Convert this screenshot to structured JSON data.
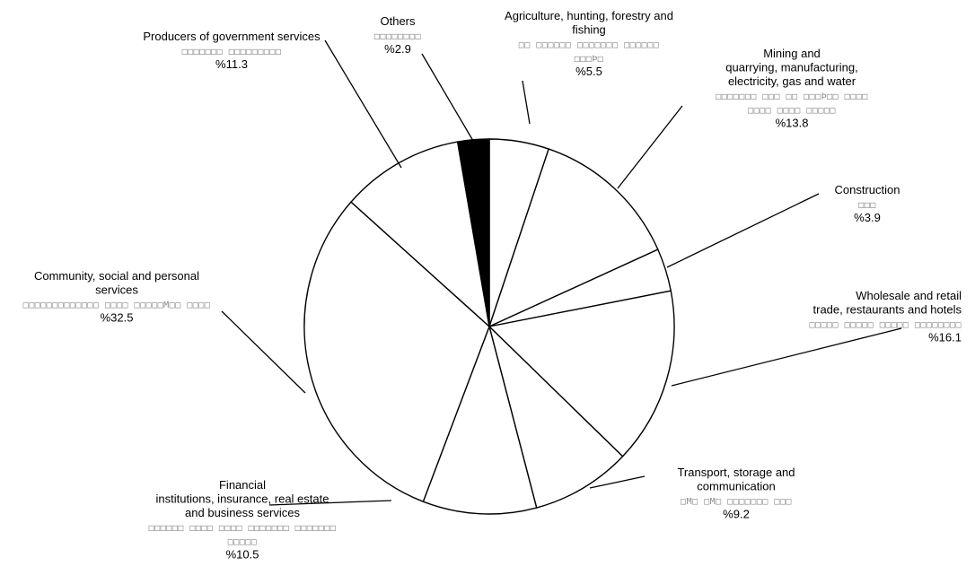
{
  "chart_data": {
    "type": "pie",
    "slices": [
      {
        "label": [
          "Agriculture, hunting, forestry and",
          "fishing"
        ],
        "garbled": [
          "□□ □□□□□□ □□□□□□□ □□□□□□",
          "□□□Þ□"
        ],
        "value": 5.5,
        "value_label": "%5.5",
        "color": "#ffffff"
      },
      {
        "label": [
          "Mining and",
          "quarrying, manufacturing,",
          "electricity, gas and water"
        ],
        "garbled": [
          "□□□□□□□ □□□ □□ □□□Þ□□ □□□□",
          "□□□□ □□□□ □□□□□"
        ],
        "value": 13.8,
        "value_label": "%13.8",
        "color": "#ffffff"
      },
      {
        "label": [
          "Construction"
        ],
        "garbled": [
          "□□□"
        ],
        "value": 3.9,
        "value_label": "%3.9",
        "color": "#ffffff"
      },
      {
        "label": [
          "Wholesale and retail",
          "trade, restaurants and hotels"
        ],
        "garbled": [
          "□□□□□ □□□□□ □□□□□ □□□□□□□□"
        ],
        "value": 16.1,
        "value_label": "%16.1",
        "color": "#ffffff"
      },
      {
        "label": [
          "Transport, storage and",
          "communication"
        ],
        "garbled": [
          "□M□ □M□ □□□□□□□ □□□"
        ],
        "value": 9.2,
        "value_label": "%9.2",
        "color": "#ffffff"
      },
      {
        "label": [
          "Financial",
          "institutions, insurance, real estate",
          "and business services"
        ],
        "garbled": [
          "□□□□□□ □□□□ □□□□ □□□□□□□ □□□□□□□",
          "□□□□□"
        ],
        "value": 10.5,
        "value_label": "%10.5",
        "color": "#ffffff"
      },
      {
        "label": [
          "Community, social and personal",
          "services"
        ],
        "garbled": [
          "□□□□□□□□□□□□□ □□□□ □□□□□M□□ □□□□"
        ],
        "value": 32.5,
        "value_label": "%32.5",
        "color": "#ffffff"
      },
      {
        "label": [
          "Producers of government services"
        ],
        "garbled": [
          "□□□□□□□ □□□□□□□□□"
        ],
        "value": 11.3,
        "value_label": "%11.3",
        "color": "#ffffff"
      },
      {
        "label": [
          "Others"
        ],
        "garbled": [
          "□□□□□□□□"
        ],
        "value": 2.9,
        "value_label": "%2.9",
        "color": "#000000"
      }
    ]
  }
}
